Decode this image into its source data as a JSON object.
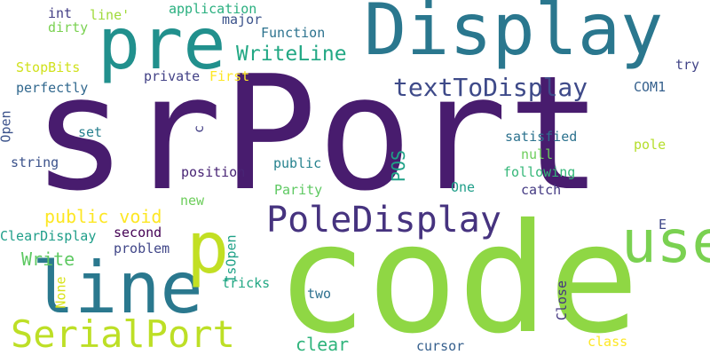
{
  "words": [
    {
      "id": "srport",
      "text": "srPort",
      "color": "#481c6e",
      "rotation": 0
    },
    {
      "id": "code",
      "text": "code",
      "color": "#8fd744",
      "rotation": 0
    },
    {
      "id": "display",
      "text": "Display",
      "color": "#2a778e",
      "rotation": 0
    },
    {
      "id": "pre",
      "text": "pre",
      "color": "#21908d",
      "rotation": 0
    },
    {
      "id": "line",
      "text": "line",
      "color": "#2a788e",
      "rotation": 0
    },
    {
      "id": "used",
      "text": "used",
      "color": "#7ad151",
      "rotation": -90
    },
    {
      "id": "p",
      "text": "p",
      "color": "#c2df23",
      "rotation": 0
    },
    {
      "id": "serialport",
      "text": "SerialPort",
      "color": "#bddf26",
      "rotation": 0
    },
    {
      "id": "poledisplay",
      "text": "PoleDisplay",
      "color": "#46337f",
      "rotation": 0
    },
    {
      "id": "texttodisplay",
      "text": "textToDisplay",
      "color": "#3e4a89",
      "rotation": 0
    },
    {
      "id": "writeline",
      "text": "WriteLine",
      "color": "#22a884",
      "rotation": 0
    },
    {
      "id": "public-void",
      "text": "public void",
      "color": "#fde725",
      "rotation": 0
    },
    {
      "id": "write",
      "text": "Write",
      "color": "#5ec962",
      "rotation": 0
    },
    {
      "id": "clear",
      "text": "clear",
      "color": "#2fb47c",
      "rotation": 0
    },
    {
      "id": "int",
      "text": "int",
      "color": "#433e85",
      "rotation": 0
    },
    {
      "id": "line-q",
      "text": "line'",
      "color": "#a0da39",
      "rotation": 0
    },
    {
      "id": "application",
      "text": "application",
      "color": "#29af7f",
      "rotation": 0
    },
    {
      "id": "major",
      "text": "major",
      "color": "#3b528b",
      "rotation": 0
    },
    {
      "id": "dirty",
      "text": "dirty",
      "color": "#7ad151",
      "rotation": 0
    },
    {
      "id": "function",
      "text": "Function",
      "color": "#2c728e",
      "rotation": 0
    },
    {
      "id": "stopbits",
      "text": "StopBits",
      "color": "#d0e11c",
      "rotation": 0
    },
    {
      "id": "private",
      "text": "private",
      "color": "#424186",
      "rotation": 0
    },
    {
      "id": "first",
      "text": "First",
      "color": "#fde725",
      "rotation": 0
    },
    {
      "id": "perfectly",
      "text": "perfectly",
      "color": "#31688e",
      "rotation": 0
    },
    {
      "id": "try",
      "text": "try",
      "color": "#414487",
      "rotation": 0
    },
    {
      "id": "com1",
      "text": "COM1",
      "color": "#35608d",
      "rotation": 0
    },
    {
      "id": "open",
      "text": "Open",
      "color": "#3b528b",
      "rotation": -90
    },
    {
      "id": "set",
      "text": "set",
      "color": "#277f8e",
      "rotation": 0
    },
    {
      "id": "c",
      "text": "c",
      "color": "#433e85",
      "rotation": -90
    },
    {
      "id": "satisfied",
      "text": "satisfied",
      "color": "#2c728e",
      "rotation": 0
    },
    {
      "id": "pole",
      "text": "pole",
      "color": "#b5de2b",
      "rotation": 0
    },
    {
      "id": "string",
      "text": "string",
      "color": "#3b528b",
      "rotation": 0
    },
    {
      "id": "pos",
      "text": "POS",
      "color": "#1fa187",
      "rotation": -90
    },
    {
      "id": "public",
      "text": "public",
      "color": "#26828e",
      "rotation": 0
    },
    {
      "id": "null",
      "text": "null",
      "color": "#6ccd5a",
      "rotation": 0
    },
    {
      "id": "position",
      "text": "position",
      "color": "#482475",
      "rotation": 0
    },
    {
      "id": "following",
      "text": "following",
      "color": "#35b779",
      "rotation": 0
    },
    {
      "id": "one",
      "text": "One",
      "color": "#1f9e89",
      "rotation": 0
    },
    {
      "id": "parity",
      "text": "Parity",
      "color": "#5ec962",
      "rotation": 0
    },
    {
      "id": "catch",
      "text": "catch",
      "color": "#443a83",
      "rotation": 0
    },
    {
      "id": "new",
      "text": "new",
      "color": "#6ccd5a",
      "rotation": 0
    },
    {
      "id": "second",
      "text": "second",
      "color": "#440154",
      "rotation": 0
    },
    {
      "id": "cleardisplay",
      "text": "ClearDisplay",
      "color": "#1f9e89",
      "rotation": 0
    },
    {
      "id": "e",
      "text": "E",
      "color": "#3f4788",
      "rotation": 0
    },
    {
      "id": "problem",
      "text": "problem",
      "color": "#404688",
      "rotation": 0
    },
    {
      "id": "isopen",
      "text": "IsOpen",
      "color": "#1fa187",
      "rotation": -90
    },
    {
      "id": "tricks",
      "text": "tricks",
      "color": "#22a884",
      "rotation": 0
    },
    {
      "id": "two",
      "text": "two",
      "color": "#2d708e",
      "rotation": 0
    },
    {
      "id": "none",
      "text": "None",
      "color": "#d8e219",
      "rotation": -90
    },
    {
      "id": "close",
      "text": "Close",
      "color": "#453781",
      "rotation": -90
    },
    {
      "id": "cursor",
      "text": "cursor",
      "color": "#355f8d",
      "rotation": 0
    },
    {
      "id": "class",
      "text": "class",
      "color": "#fde725",
      "rotation": 0
    }
  ]
}
